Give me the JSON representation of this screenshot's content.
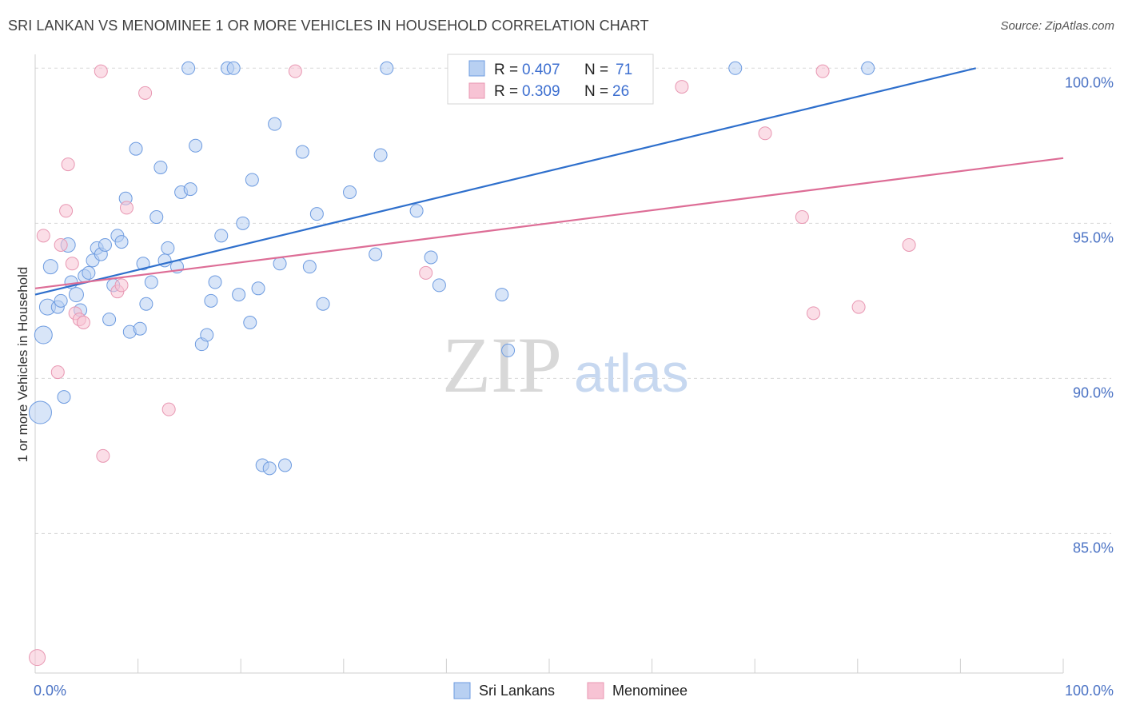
{
  "title": "SRI LANKAN VS MENOMINEE 1 OR MORE VEHICLES IN HOUSEHOLD CORRELATION CHART",
  "source": "Source: ZipAtlas.com",
  "watermark": {
    "zip": "ZIP",
    "atlas": "atlas"
  },
  "colors": {
    "sri_fill": "#b8d0f2",
    "sri_stroke": "#6d9be0",
    "sri_line": "#2e6fcc",
    "men_fill": "#f7c3d4",
    "men_stroke": "#e897b2",
    "men_line": "#dd6d96",
    "grid": "#d8d8d8",
    "axis_text": "#4a72c4"
  },
  "legend": {
    "rows": [
      {
        "r_label": "R =",
        "r_value": "0.407",
        "n_label": "N =",
        "n_value": "71"
      },
      {
        "r_label": "R =",
        "r_value": "0.309",
        "n_label": "N =",
        "n_value": "26"
      }
    ]
  },
  "chart_data": {
    "type": "scatter",
    "xlabel": "",
    "ylabel": "1 or more Vehicles in Household",
    "xlim": [
      0,
      100
    ],
    "ylim": [
      80.5,
      100.6
    ],
    "x_tick_labels": [
      "0.0%",
      "100.0%"
    ],
    "y_ticks": [
      {
        "value": 100,
        "label": "100.0%"
      },
      {
        "value": 95,
        "label": "95.0%"
      },
      {
        "value": 90,
        "label": "90.0%"
      },
      {
        "value": 85,
        "label": "85.0%"
      }
    ],
    "grid": "horizontal dashed",
    "series": [
      {
        "name": "Sri Lankans",
        "trend": {
          "x0": 0,
          "y0": 92.7,
          "x1": 91.5,
          "y1": 100
        },
        "points": [
          [
            0.5,
            88.9,
            14
          ],
          [
            0.8,
            91.4,
            11
          ],
          [
            1.2,
            92.3,
            10
          ],
          [
            1.5,
            93.6,
            9
          ],
          [
            2.2,
            92.3,
            8
          ],
          [
            2.5,
            92.5,
            8
          ],
          [
            2.8,
            89.4,
            8
          ],
          [
            3.2,
            94.3,
            9
          ],
          [
            3.5,
            93.1,
            8
          ],
          [
            4.0,
            92.7,
            9
          ],
          [
            4.4,
            92.2,
            8
          ],
          [
            4.8,
            93.3,
            8
          ],
          [
            5.2,
            93.4,
            8
          ],
          [
            5.6,
            93.8,
            8
          ],
          [
            6.0,
            94.2,
            8
          ],
          [
            6.4,
            94.0,
            8
          ],
          [
            6.8,
            94.3,
            8
          ],
          [
            7.2,
            91.9,
            8
          ],
          [
            7.6,
            93.0,
            8
          ],
          [
            8.0,
            94.6,
            8
          ],
          [
            8.4,
            94.4,
            8
          ],
          [
            8.8,
            95.8,
            8
          ],
          [
            9.2,
            91.5,
            8
          ],
          [
            9.8,
            97.4,
            8
          ],
          [
            10.2,
            91.6,
            8
          ],
          [
            10.5,
            93.7,
            8
          ],
          [
            10.8,
            92.4,
            8
          ],
          [
            11.3,
            93.1,
            8
          ],
          [
            11.8,
            95.2,
            8
          ],
          [
            12.2,
            96.8,
            8
          ],
          [
            12.6,
            93.8,
            8
          ],
          [
            12.9,
            94.2,
            8
          ],
          [
            13.8,
            93.6,
            8
          ],
          [
            14.2,
            96.0,
            8
          ],
          [
            15.1,
            96.1,
            8
          ],
          [
            14.9,
            100.0,
            8
          ],
          [
            15.6,
            97.5,
            8
          ],
          [
            16.2,
            91.1,
            8
          ],
          [
            16.7,
            91.4,
            8
          ],
          [
            17.1,
            92.5,
            8
          ],
          [
            17.5,
            93.1,
            8
          ],
          [
            18.1,
            94.6,
            8
          ],
          [
            18.7,
            100.0,
            8
          ],
          [
            19.3,
            100.0,
            8
          ],
          [
            19.8,
            92.7,
            8
          ],
          [
            20.2,
            95.0,
            8
          ],
          [
            20.9,
            91.8,
            8
          ],
          [
            21.1,
            96.4,
            8
          ],
          [
            21.7,
            92.9,
            8
          ],
          [
            22.1,
            87.2,
            8
          ],
          [
            22.8,
            87.1,
            8
          ],
          [
            23.3,
            98.2,
            8
          ],
          [
            23.8,
            93.7,
            8
          ],
          [
            24.3,
            87.2,
            8
          ],
          [
            26.0,
            97.3,
            8
          ],
          [
            26.7,
            93.6,
            8
          ],
          [
            27.4,
            95.3,
            8
          ],
          [
            28.0,
            92.4,
            8
          ],
          [
            30.6,
            96.0,
            8
          ],
          [
            33.1,
            94.0,
            8
          ],
          [
            33.6,
            97.2,
            8
          ],
          [
            34.2,
            100.0,
            8
          ],
          [
            37.1,
            95.4,
            8
          ],
          [
            38.5,
            93.9,
            8
          ],
          [
            39.3,
            93.0,
            8
          ],
          [
            41.8,
            100.0,
            8
          ],
          [
            45.4,
            92.7,
            8
          ],
          [
            46.0,
            90.9,
            8
          ],
          [
            68.1,
            100.0,
            8
          ],
          [
            81.0,
            100.0,
            8
          ],
          [
            56.2,
            100.0,
            8
          ]
        ]
      },
      {
        "name": "Menominee",
        "trend": {
          "x0": 0,
          "y0": 92.9,
          "x1": 100,
          "y1": 97.1
        },
        "points": [
          [
            0.2,
            81.0,
            10
          ],
          [
            0.8,
            94.6,
            8
          ],
          [
            2.2,
            90.2,
            8
          ],
          [
            2.5,
            94.3,
            8
          ],
          [
            3.2,
            96.9,
            8
          ],
          [
            3.0,
            95.4,
            8
          ],
          [
            3.6,
            93.7,
            8
          ],
          [
            3.9,
            92.1,
            8
          ],
          [
            4.3,
            91.9,
            8
          ],
          [
            4.7,
            91.8,
            8
          ],
          [
            6.6,
            87.5,
            8
          ],
          [
            8.0,
            92.8,
            8
          ],
          [
            8.4,
            93.0,
            8
          ],
          [
            8.9,
            95.5,
            8
          ],
          [
            6.4,
            99.9,
            8
          ],
          [
            10.7,
            99.2,
            8
          ],
          [
            13.0,
            89.0,
            8
          ],
          [
            25.3,
            99.9,
            8
          ],
          [
            38.0,
            93.4,
            8
          ],
          [
            62.9,
            99.4,
            8
          ],
          [
            71.0,
            97.9,
            8
          ],
          [
            74.6,
            95.2,
            8
          ],
          [
            75.7,
            92.1,
            8
          ],
          [
            76.6,
            99.9,
            8
          ],
          [
            80.1,
            92.3,
            8
          ],
          [
            85.0,
            94.3,
            8
          ]
        ]
      }
    ]
  }
}
